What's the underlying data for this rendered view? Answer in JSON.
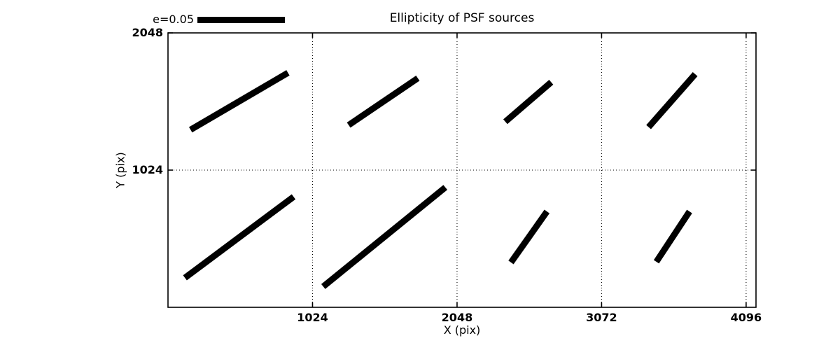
{
  "figure": {
    "background_color": "#ffffff",
    "ink_color": "#000000"
  },
  "chart_data": {
    "type": "line",
    "subtype": "psf-ellipticity-whisker-map",
    "title": "Ellipticity of PSF sources",
    "xlabel": "X (pix)",
    "ylabel": "Y (pix)",
    "xlim": [
      0,
      4166
    ],
    "ylim": [
      0,
      2048
    ],
    "xticks": [
      1024,
      2048,
      3072,
      4096
    ],
    "yticks": [
      1024,
      2048
    ],
    "grid": {
      "visible": true,
      "style": "dotted",
      "color": "#000000"
    },
    "legend": {
      "label": "e=0.05",
      "e_value": 0.05,
      "bar_length_data_units": 620,
      "position": "above-axes-left"
    },
    "whiskers": [
      {
        "cx": 512,
        "cy": 1536,
        "e": 0.065,
        "angle_deg": 32,
        "x1": 160,
        "y1": 1325,
        "x2": 850,
        "y2": 1750
      },
      {
        "cx": 1536,
        "cy": 1536,
        "e": 0.049,
        "angle_deg": 36,
        "x1": 1280,
        "y1": 1360,
        "x2": 1770,
        "y2": 1710
      },
      {
        "cx": 2560,
        "cy": 1535,
        "e": 0.035,
        "angle_deg": 42,
        "x1": 2390,
        "y1": 1385,
        "x2": 2715,
        "y2": 1680
      },
      {
        "cx": 3584,
        "cy": 1540,
        "e": 0.042,
        "angle_deg": 50,
        "x1": 3405,
        "y1": 1345,
        "x2": 3735,
        "y2": 1740
      },
      {
        "cx": 512,
        "cy": 512,
        "e": 0.079,
        "angle_deg": 38,
        "x1": 120,
        "y1": 220,
        "x2": 890,
        "y2": 825
      },
      {
        "cx": 1536,
        "cy": 512,
        "e": 0.092,
        "angle_deg": 41,
        "x1": 1100,
        "y1": 155,
        "x2": 1965,
        "y2": 895
      },
      {
        "cx": 2560,
        "cy": 512,
        "e": 0.037,
        "angle_deg": 56,
        "x1": 2430,
        "y1": 335,
        "x2": 2685,
        "y2": 715
      },
      {
        "cx": 3584,
        "cy": 512,
        "e": 0.036,
        "angle_deg": 58,
        "x1": 3460,
        "y1": 340,
        "x2": 3695,
        "y2": 715
      }
    ]
  }
}
